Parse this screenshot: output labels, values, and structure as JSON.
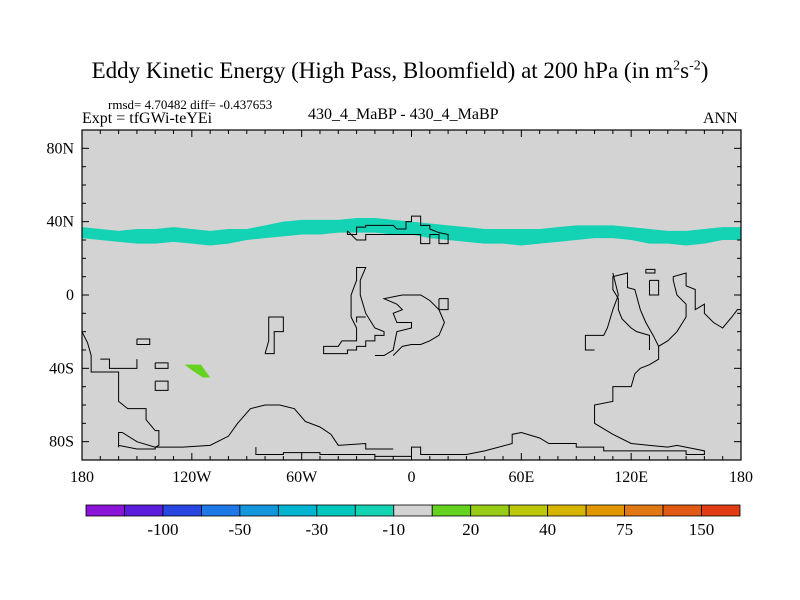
{
  "chart_data": {
    "type": "heatmap",
    "title_main": "Eddy Kinetic Energy (High Pass, Bloomfield) at 200 hPa (in m",
    "title_units_sup1": "2",
    "title_units_mid": "s",
    "title_units_sup2": "-2",
    "title_tail": ")",
    "rmsd_label": "rmsd= 4.70482 diff= -0.437653",
    "expt_label": "Expt = tfGWi-teYEi",
    "center_label": "430_4_MaBP - 430_4_MaBP",
    "right_label": "ANN",
    "x_range": [
      -180,
      180
    ],
    "y_range": [
      -90,
      90
    ],
    "x_ticks": [
      {
        "value": -180,
        "label": "180"
      },
      {
        "value": -120,
        "label": "120W"
      },
      {
        "value": -60,
        "label": "60W"
      },
      {
        "value": 0,
        "label": "0"
      },
      {
        "value": 60,
        "label": "60E"
      },
      {
        "value": 120,
        "label": "120E"
      },
      {
        "value": 180,
        "label": "180"
      }
    ],
    "y_ticks": [
      {
        "value": 80,
        "label": "80N"
      },
      {
        "value": 40,
        "label": "40N"
      },
      {
        "value": 0,
        "label": "0"
      },
      {
        "value": -40,
        "label": "40S"
      },
      {
        "value": -80,
        "label": "80S"
      }
    ],
    "background_value_color": "#d3d3d3",
    "colorbar": {
      "colors": [
        "#8c14d7",
        "#5a1edc",
        "#2846e1",
        "#1e78e6",
        "#1496dc",
        "#00b4d2",
        "#00c8be",
        "#14d2b4",
        "#d3d3d3",
        "#64d21e",
        "#96cd14",
        "#bec80a",
        "#d7b400",
        "#e19600",
        "#e17814",
        "#e15a14",
        "#e13c14"
      ],
      "labels": [
        {
          "text": "-100",
          "boundary": 2
        },
        {
          "text": "-50",
          "boundary": 4
        },
        {
          "text": "-30",
          "boundary": 6
        },
        {
          "text": "-10",
          "boundary": 8
        },
        {
          "text": "20",
          "boundary": 10
        },
        {
          "text": "40",
          "boundary": 12
        },
        {
          "text": "75",
          "boundary": 14
        },
        {
          "text": "150",
          "boundary": 16
        }
      ]
    },
    "features": [
      {
        "name": "midlatitude-band",
        "level": "-10",
        "color": "#14d2b4",
        "lon": [
          -180,
          -170,
          -160,
          -150,
          -140,
          -130,
          -120,
          -110,
          -100,
          -90,
          -80,
          -70,
          -60,
          -50,
          -40,
          -30,
          -20,
          -10,
          0,
          10,
          20,
          30,
          40,
          50,
          60,
          70,
          80,
          90,
          100,
          110,
          120,
          130,
          140,
          150,
          160,
          170,
          180
        ],
        "lat_top": [
          37,
          36,
          35,
          36,
          36,
          37,
          36,
          35,
          36,
          36,
          38,
          40,
          41,
          41,
          41,
          42,
          42,
          41,
          40,
          39,
          38,
          37,
          36,
          36,
          36,
          36,
          37,
          38,
          38,
          38,
          37,
          36,
          35,
          35,
          36,
          37,
          37
        ],
        "lat_bottom": [
          31,
          30,
          29,
          28,
          28,
          29,
          28,
          27,
          28,
          30,
          31,
          32,
          33,
          33,
          34,
          34,
          34,
          33,
          33,
          31,
          30,
          29,
          28,
          28,
          27,
          28,
          29,
          30,
          31,
          31,
          30,
          28,
          28,
          27,
          28,
          30,
          30
        ]
      },
      {
        "name": "south-pacific-patch",
        "level": "20",
        "color": "#64d21e",
        "points": [
          [
            -124,
            -38
          ],
          [
            -115,
            -38
          ],
          [
            -110,
            -45
          ],
          [
            -114,
            -45
          ],
          [
            -120,
            -41
          ]
        ]
      }
    ],
    "coastlines": [
      [
        [
          -180,
          -20
        ],
        [
          -177,
          -26
        ],
        [
          -175,
          -33
        ],
        [
          -175,
          -42
        ],
        [
          -160,
          -42
        ],
        [
          -160,
          -58
        ],
        [
          -155,
          -62
        ],
        [
          -145,
          -62
        ],
        [
          -145,
          -68
        ],
        [
          -140,
          -74
        ],
        [
          -138,
          -74
        ],
        [
          -138,
          -82
        ],
        [
          -140,
          -83
        ],
        [
          -150,
          -80
        ],
        [
          -158,
          -75
        ],
        [
          -160,
          -75
        ],
        [
          -160,
          -83
        ]
      ],
      [
        [
          -160,
          -83
        ],
        [
          -160,
          -82
        ],
        [
          -150,
          -84
        ],
        [
          -140,
          -84
        ],
        [
          -140,
          -83
        ],
        [
          -125,
          -83
        ],
        [
          -110,
          -82
        ],
        [
          -100,
          -77
        ],
        [
          -95,
          -70
        ],
        [
          -88,
          -62
        ],
        [
          -80,
          -60
        ],
        [
          -72,
          -60
        ],
        [
          -64,
          -62
        ],
        [
          -58,
          -69
        ],
        [
          -50,
          -72
        ],
        [
          -44,
          -76
        ],
        [
          -40,
          -82
        ],
        [
          -25,
          -81
        ],
        [
          -25,
          -84
        ],
        [
          -10,
          -84
        ]
      ],
      [
        [
          -150,
          -24
        ],
        [
          -150,
          -27
        ],
        [
          -143,
          -27
        ],
        [
          -143,
          -24
        ],
        [
          -150,
          -24
        ]
      ],
      [
        [
          -170,
          -35
        ],
        [
          -165,
          -35
        ],
        [
          -165,
          -40
        ],
        [
          -150,
          -40
        ],
        [
          -150,
          -35
        ]
      ],
      [
        [
          -140,
          -37
        ],
        [
          -133,
          -37
        ],
        [
          -133,
          -40
        ],
        [
          -140,
          -40
        ],
        [
          -140,
          -37
        ]
      ],
      [
        [
          -140,
          -47
        ],
        [
          -133,
          -47
        ],
        [
          -133,
          -52
        ],
        [
          -140,
          -52
        ],
        [
          -140,
          -47
        ]
      ],
      [
        [
          -85,
          -83
        ],
        [
          -85,
          -87
        ],
        [
          -70,
          -87
        ],
        [
          -70,
          -86
        ],
        [
          -50,
          -86
        ],
        [
          -50,
          -87
        ],
        [
          -20,
          -87
        ],
        [
          -20,
          -88
        ],
        [
          0,
          -88
        ],
        [
          0,
          -83
        ],
        [
          5,
          -83
        ],
        [
          5,
          -87
        ],
        [
          30,
          -87
        ],
        [
          40,
          -85
        ],
        [
          55,
          -81
        ],
        [
          55,
          -76
        ],
        [
          60,
          -75
        ],
        [
          70,
          -78
        ],
        [
          75,
          -81
        ],
        [
          90,
          -81
        ],
        [
          90,
          -83
        ],
        [
          105,
          -83
        ],
        [
          105,
          -85
        ],
        [
          130,
          -85
        ],
        [
          150,
          -85
        ],
        [
          150,
          -87
        ],
        [
          160,
          -87
        ],
        [
          160,
          -85
        ],
        [
          155,
          -84
        ],
        [
          145,
          -82
        ],
        [
          140,
          -83
        ],
        [
          130,
          -82
        ],
        [
          120,
          -81
        ],
        [
          110,
          -76
        ],
        [
          100,
          -70
        ],
        [
          100,
          -60
        ],
        [
          110,
          -58
        ],
        [
          110,
          -50
        ],
        [
          120,
          -50
        ],
        [
          122,
          -43
        ],
        [
          125,
          -40
        ],
        [
          130,
          -38
        ],
        [
          135,
          -35
        ],
        [
          135,
          -28
        ],
        [
          140,
          -25
        ],
        [
          145,
          -20
        ],
        [
          150,
          -12
        ],
        [
          150,
          -5
        ],
        [
          145,
          0
        ],
        [
          143,
          8
        ],
        [
          143,
          10
        ],
        [
          150,
          12
        ],
        [
          150,
          5
        ],
        [
          155,
          3
        ],
        [
          155,
          -8
        ],
        [
          160,
          -5
        ],
        [
          160,
          -10
        ],
        [
          165,
          -15
        ],
        [
          170,
          -18
        ],
        [
          175,
          -12
        ],
        [
          178,
          -8
        ],
        [
          180,
          -8
        ]
      ],
      [
        [
          130,
          -30
        ],
        [
          130,
          -22
        ],
        [
          123,
          -20
        ],
        [
          120,
          -18
        ],
        [
          115,
          -13
        ],
        [
          113,
          -8
        ],
        [
          113,
          -2
        ],
        [
          110,
          3
        ],
        [
          110,
          10
        ],
        [
          118,
          12
        ],
        [
          118,
          4
        ],
        [
          122,
          3
        ],
        [
          125,
          -8
        ],
        [
          128,
          -15
        ],
        [
          132,
          -22
        ],
        [
          135,
          -28
        ]
      ],
      [
        [
          -80,
          -32
        ],
        [
          -75,
          -32
        ],
        [
          -75,
          -20
        ],
        [
          -70,
          -20
        ],
        [
          -70,
          -12
        ],
        [
          -78,
          -12
        ],
        [
          -78,
          -25
        ],
        [
          -80,
          -32
        ]
      ],
      [
        [
          -40,
          -32
        ],
        [
          -35,
          -32
        ],
        [
          -35,
          -30
        ],
        [
          -30,
          -30
        ],
        [
          -30,
          -28
        ],
        [
          -25,
          -28
        ],
        [
          -25,
          -25
        ],
        [
          -20,
          -25
        ],
        [
          -20,
          -22
        ],
        [
          -15,
          -22
        ],
        [
          -15,
          -20
        ],
        [
          -20,
          -18
        ],
        [
          -25,
          -10
        ],
        [
          -28,
          0
        ],
        [
          -28,
          8
        ],
        [
          -25,
          15
        ],
        [
          -30,
          15
        ],
        [
          -30,
          8
        ],
        [
          -33,
          0
        ],
        [
          -33,
          -12
        ],
        [
          -30,
          -18
        ],
        [
          -30,
          -25
        ],
        [
          -38,
          -25
        ],
        [
          -40,
          -28
        ],
        [
          -48,
          -28
        ],
        [
          -48,
          -32
        ],
        [
          -40,
          -32
        ]
      ],
      [
        [
          -20,
          -33
        ],
        [
          -15,
          -33
        ],
        [
          -10,
          -30
        ],
        [
          -8,
          -20
        ],
        [
          0,
          -18
        ],
        [
          0,
          -15
        ],
        [
          -8,
          -15
        ],
        [
          -10,
          -10
        ],
        [
          -5,
          -8
        ],
        [
          -8,
          -5
        ],
        [
          -15,
          -2
        ],
        [
          -5,
          0
        ],
        [
          5,
          0
        ],
        [
          10,
          -3
        ],
        [
          15,
          -8
        ],
        [
          18,
          -15
        ],
        [
          15,
          -22
        ],
        [
          10,
          -25
        ],
        [
          5,
          -27
        ],
        [
          0,
          -27
        ],
        [
          -5,
          -28
        ],
        [
          -10,
          -33
        ]
      ],
      [
        [
          -35,
          35
        ],
        [
          -35,
          33
        ],
        [
          -30,
          33
        ],
        [
          -30,
          37
        ],
        [
          -25,
          37
        ],
        [
          -25,
          38
        ],
        [
          -10,
          38
        ],
        [
          -8,
          36
        ],
        [
          -3,
          36
        ],
        [
          -3,
          40
        ],
        [
          0,
          40
        ],
        [
          0,
          43
        ],
        [
          5,
          43
        ],
        [
          5,
          38
        ],
        [
          10,
          38
        ],
        [
          10,
          36
        ],
        [
          15,
          34
        ],
        [
          20,
          33
        ],
        [
          20,
          28
        ],
        [
          15,
          28
        ],
        [
          15,
          33
        ],
        [
          10,
          33
        ],
        [
          10,
          28
        ],
        [
          5,
          28
        ],
        [
          5,
          33
        ],
        [
          0,
          33
        ],
        [
          -5,
          33
        ],
        [
          -15,
          33
        ],
        [
          -20,
          33
        ],
        [
          -25,
          33
        ],
        [
          -25,
          30
        ],
        [
          -30,
          30
        ],
        [
          -35,
          35
        ]
      ],
      [
        [
          15,
          -2
        ],
        [
          20,
          -2
        ],
        [
          20,
          -8
        ],
        [
          15,
          -8
        ],
        [
          15,
          -2
        ]
      ],
      [
        [
          -30,
          -15
        ],
        [
          -30,
          -12
        ],
        [
          -25,
          -12
        ]
      ],
      [
        [
          100,
          -30
        ],
        [
          95,
          -30
        ],
        [
          95,
          -22
        ],
        [
          105,
          -22
        ],
        [
          107,
          -18
        ],
        [
          110,
          -8
        ],
        [
          113,
          0
        ],
        [
          110,
          12
        ]
      ],
      [
        [
          128,
          14
        ],
        [
          133,
          14
        ],
        [
          133,
          12
        ],
        [
          128,
          12
        ],
        [
          128,
          14
        ]
      ],
      [
        [
          130,
          8
        ],
        [
          135,
          8
        ],
        [
          135,
          0
        ],
        [
          130,
          0
        ],
        [
          130,
          8
        ]
      ]
    ]
  }
}
